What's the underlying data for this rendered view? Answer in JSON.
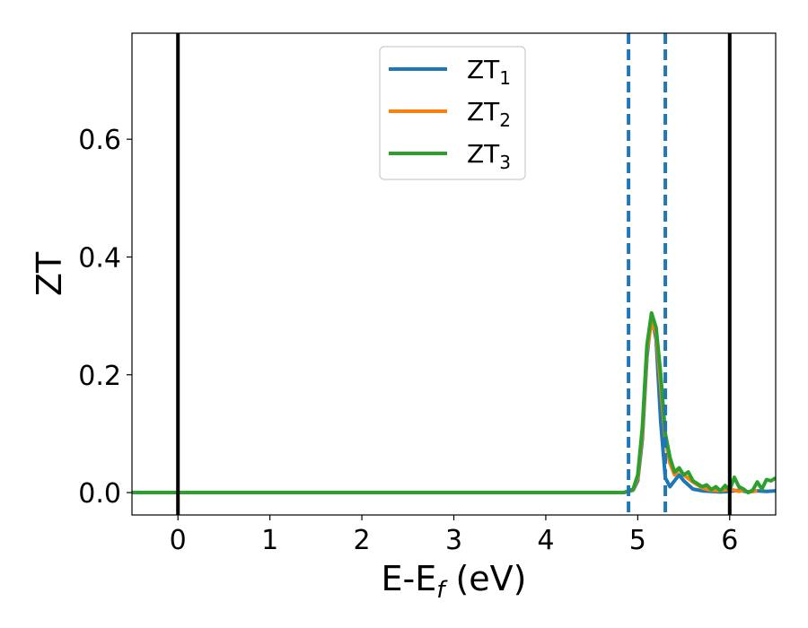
{
  "chart_data": {
    "type": "line",
    "xlabel": "E-E",
    "xlabel_sub": "f",
    "xlabel_unit": " (eV)",
    "ylabel": "ZT",
    "xlim": [
      -0.5,
      6.5
    ],
    "ylim": [
      -0.038,
      0.78
    ],
    "xticks": [
      0,
      1,
      2,
      3,
      4,
      5,
      6
    ],
    "xtick_labels": [
      "0",
      "1",
      "2",
      "3",
      "4",
      "5",
      "6"
    ],
    "yticks": [
      0.0,
      0.2,
      0.4,
      0.6
    ],
    "ytick_labels": [
      "0.0",
      "0.2",
      "0.4",
      "0.6"
    ],
    "grid": false,
    "legend_position": "top-center",
    "vlines_solid": [
      0,
      6
    ],
    "vlines_dashed": [
      4.9,
      5.3
    ],
    "colors": {
      "vline_solid": "#000000",
      "vline_dashed": "#1f77b4"
    },
    "series": [
      {
        "name": "ZT",
        "sub": "1",
        "color": "#1f77b4",
        "x": [
          -0.5,
          4.85,
          4.95,
          5.0,
          5.05,
          5.1,
          5.15,
          5.2,
          5.25,
          5.3,
          5.35,
          5.4,
          5.45,
          5.5,
          5.6,
          5.7,
          5.8,
          5.9,
          6.0,
          6.1,
          6.2,
          6.3,
          6.4,
          6.5
        ],
        "y": [
          0.0,
          0.0,
          0.004,
          0.02,
          0.09,
          0.23,
          0.3,
          0.26,
          0.12,
          0.025,
          0.01,
          0.02,
          0.03,
          0.02,
          0.006,
          0.003,
          0.002,
          0.001,
          0.002,
          0.004,
          0.001,
          0.003,
          0.002,
          0.003
        ]
      },
      {
        "name": "ZT",
        "sub": "2",
        "color": "#ff7f0e",
        "x": [
          -0.5,
          4.85,
          4.95,
          5.0,
          5.05,
          5.1,
          5.15,
          5.2,
          5.25,
          5.3,
          5.35,
          5.4,
          5.45,
          5.5,
          5.6,
          5.7,
          5.8,
          5.9,
          6.0,
          6.05,
          6.1,
          6.15,
          6.2,
          6.3
        ],
        "y": [
          0.0,
          0.0,
          0.005,
          0.025,
          0.1,
          0.24,
          0.29,
          0.27,
          0.18,
          0.09,
          0.05,
          0.03,
          0.04,
          0.03,
          0.018,
          0.008,
          0.004,
          0.003,
          0.006,
          0.004,
          0.002,
          0.004,
          0.001,
          0.003
        ]
      },
      {
        "name": "ZT",
        "sub": "3",
        "color": "#2ca02c",
        "x": [
          -0.5,
          4.85,
          4.95,
          5.0,
          5.05,
          5.1,
          5.15,
          5.2,
          5.25,
          5.3,
          5.35,
          5.4,
          5.45,
          5.5,
          5.55,
          5.6,
          5.65,
          5.7,
          5.75,
          5.8,
          5.85,
          5.9,
          5.95,
          6.0,
          6.05,
          6.1,
          6.15,
          6.2,
          6.25,
          6.3,
          6.35,
          6.4,
          6.45,
          6.5
        ],
        "y": [
          0.0,
          0.0,
          0.006,
          0.03,
          0.11,
          0.25,
          0.305,
          0.28,
          0.2,
          0.1,
          0.06,
          0.035,
          0.042,
          0.03,
          0.035,
          0.02,
          0.015,
          0.01,
          0.013,
          0.005,
          0.01,
          0.003,
          0.012,
          0.004,
          0.026,
          0.01,
          0.006,
          0.0,
          0.004,
          0.018,
          0.006,
          0.022,
          0.02,
          0.025
        ]
      }
    ]
  }
}
